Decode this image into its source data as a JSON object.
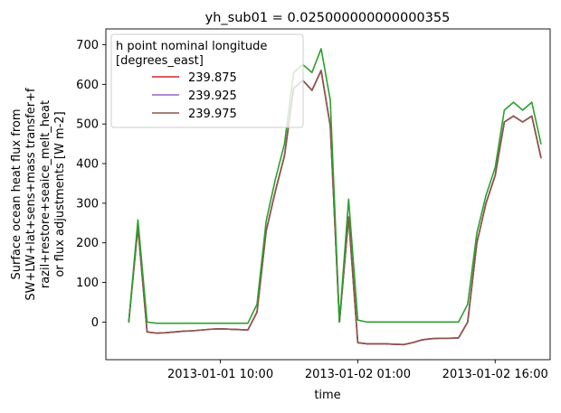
{
  "chart_data": {
    "type": "line",
    "title": "yh_sub01 = 0.025000000000000355",
    "xlabel": "time",
    "ylabel_lines": [
      "Surface ocean heat flux from",
      "SW+LW+lat+sens+mass transfer+f",
      "razil+restore+seaice_melt_heat",
      "or flux adjustments [W m-2]"
    ],
    "x_unit": "hours since 2013-01-01 00:00",
    "xlim": [
      -2.5,
      46
    ],
    "ylim": [
      -95,
      740
    ],
    "x_ticks": [
      {
        "x": 10,
        "label": "2013-01-01 10:00"
      },
      {
        "x": 25,
        "label": "2013-01-02 01:00"
      },
      {
        "x": 40,
        "label": "2013-01-02 16:00"
      }
    ],
    "y_ticks": [
      0,
      100,
      200,
      300,
      400,
      500,
      600,
      700
    ],
    "legend": {
      "title_lines": [
        "h point nominal longitude",
        "[degrees_east]"
      ],
      "placement": "upper left"
    },
    "series": [
      {
        "name": "239.875",
        "color": "#d62728",
        "in_legend": true,
        "x": [
          0,
          1,
          2,
          3,
          4,
          5,
          6,
          7,
          8,
          9,
          10,
          11,
          12,
          13,
          14,
          15,
          16,
          17,
          18,
          19,
          20,
          21,
          22,
          23,
          24,
          25,
          26,
          27,
          28,
          29,
          30,
          31,
          32,
          33,
          34,
          35,
          36,
          37,
          38,
          39,
          40,
          41,
          42,
          43,
          44,
          45
        ],
        "y": [
          0,
          240,
          -25,
          -28,
          -27,
          -25,
          -23,
          -22,
          -20,
          -18,
          -17,
          -18,
          -19,
          -20,
          25,
          230,
          330,
          420,
          590,
          610,
          585,
          635,
          495,
          0,
          265,
          -52,
          -55,
          -55,
          -55,
          -56,
          -57,
          -52,
          -45,
          -42,
          -41,
          -41,
          -40,
          0,
          200,
          300,
          370,
          505,
          520,
          505,
          520,
          415
        ]
      },
      {
        "name": "239.925",
        "color": "#9467bd",
        "in_legend": true,
        "x": [
          0,
          1,
          2,
          3,
          4,
          5,
          6,
          7,
          8,
          9,
          10,
          11,
          12,
          13,
          14,
          15,
          16,
          17,
          18,
          19,
          20,
          21,
          22,
          23,
          24,
          25,
          26,
          27,
          28,
          29,
          30,
          31,
          32,
          33,
          34,
          35,
          36,
          37,
          38,
          39,
          40,
          41,
          42,
          43,
          44,
          45
        ],
        "y": [
          0,
          240,
          -25,
          -28,
          -27,
          -25,
          -23,
          -22,
          -20,
          -18,
          -17,
          -18,
          -19,
          -20,
          25,
          230,
          330,
          420,
          590,
          610,
          585,
          635,
          495,
          0,
          265,
          -52,
          -55,
          -55,
          -55,
          -56,
          -57,
          -52,
          -45,
          -42,
          -41,
          -41,
          -40,
          0,
          200,
          300,
          370,
          505,
          520,
          505,
          520,
          415
        ]
      },
      {
        "name": "239.975",
        "color": "#8c564b",
        "in_legend": true,
        "x": [
          0,
          1,
          2,
          3,
          4,
          5,
          6,
          7,
          8,
          9,
          10,
          11,
          12,
          13,
          14,
          15,
          16,
          17,
          18,
          19,
          20,
          21,
          22,
          23,
          24,
          25,
          26,
          27,
          28,
          29,
          30,
          31,
          32,
          33,
          34,
          35,
          36,
          37,
          38,
          39,
          40,
          41,
          42,
          43,
          44,
          45
        ],
        "y": [
          0,
          240,
          -25,
          -28,
          -27,
          -25,
          -23,
          -22,
          -20,
          -18,
          -17,
          -18,
          -19,
          -20,
          25,
          230,
          330,
          420,
          590,
          610,
          585,
          635,
          495,
          0,
          265,
          -52,
          -55,
          -55,
          -55,
          -56,
          -57,
          -52,
          -45,
          -42,
          -41,
          -41,
          -40,
          0,
          200,
          300,
          370,
          505,
          520,
          505,
          520,
          415
        ]
      },
      {
        "name": "",
        "color": "#2ca02c",
        "in_legend": false,
        "x": [
          0,
          1,
          2,
          3,
          4,
          5,
          6,
          7,
          8,
          9,
          10,
          11,
          12,
          13,
          14,
          15,
          16,
          17,
          18,
          19,
          20,
          21,
          22,
          23,
          24,
          25,
          26,
          27,
          28,
          29,
          30,
          31,
          32,
          33,
          34,
          35,
          36,
          37,
          38,
          39,
          40,
          41,
          42,
          43,
          44,
          45
        ],
        "y": [
          0,
          258,
          0,
          -3,
          -3,
          -3,
          -3,
          -3,
          -3,
          -3,
          -3,
          -3,
          -3,
          -3,
          45,
          255,
          360,
          450,
          630,
          650,
          630,
          690,
          560,
          0,
          310,
          5,
          0,
          0,
          0,
          0,
          0,
          0,
          0,
          0,
          0,
          0,
          0,
          45,
          225,
          320,
          390,
          535,
          555,
          535,
          555,
          450
        ]
      }
    ]
  }
}
